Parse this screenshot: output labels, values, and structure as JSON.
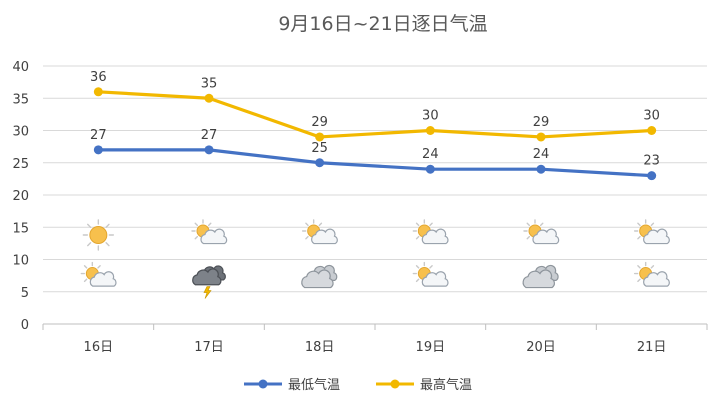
{
  "chart_data": {
    "type": "line",
    "title": "9月16日~21日逐日气温",
    "categories": [
      "16日",
      "17日",
      "18日",
      "19日",
      "20日",
      "21日"
    ],
    "y_ticks": [
      "0",
      "5",
      "10",
      "15",
      "20",
      "25",
      "30",
      "35",
      "40"
    ],
    "ylim": [
      0,
      40
    ],
    "grid": true,
    "legend_position": "bottom",
    "series": [
      {
        "name": "最低气温",
        "color": "#4472c4",
        "values": [
          27,
          27,
          25,
          24,
          24,
          23
        ],
        "labels": [
          "27",
          "27",
          "25",
          "24",
          "24",
          "23"
        ]
      },
      {
        "name": "最高气温",
        "color": "#f2b800",
        "values": [
          36,
          35,
          29,
          30,
          29,
          30
        ],
        "labels": [
          "36",
          "35",
          "29",
          "30",
          "29",
          "30"
        ]
      }
    ],
    "weather_icons": {
      "day": [
        "sun-icon",
        "sun-cloud-icon",
        "sun-cloud-icon",
        "sun-cloud-icon",
        "sun-cloud-icon",
        "sun-cloud-icon"
      ],
      "night": [
        "sun-cloud-icon",
        "thunderstorm-icon",
        "cloudy-icon",
        "sun-cloud-icon",
        "cloudy-icon",
        "sun-cloud-icon"
      ],
      "day_level": 13.8,
      "night_level": 7.2
    }
  }
}
